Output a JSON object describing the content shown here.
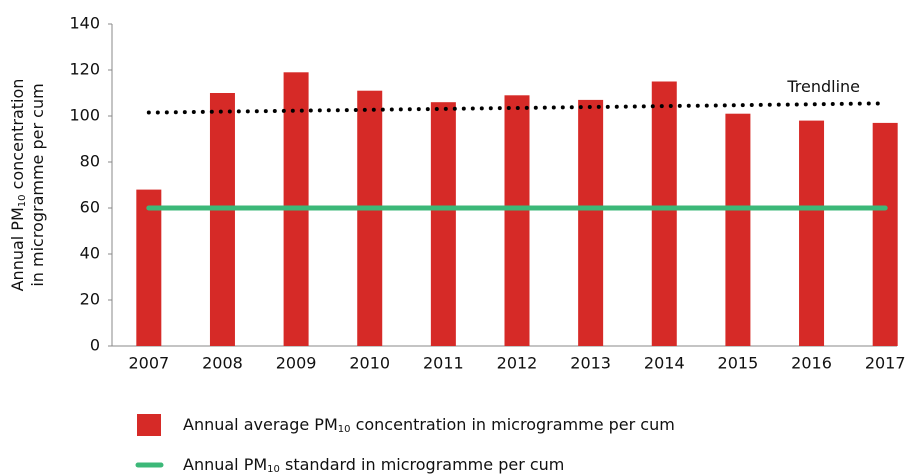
{
  "chart_data": {
    "type": "bar",
    "ylabel": [
      [
        "Annual PM",
        "10",
        " concentration"
      ],
      [
        "in microgramme per cum"
      ]
    ],
    "categories": [
      "2007",
      "2008",
      "2009",
      "2010",
      "2011",
      "2012",
      "2013",
      "2014",
      "2015",
      "2016",
      "2017"
    ],
    "series": [
      {
        "name": [
          "Annual average PM",
          "10",
          " concentration in microgramme per cum"
        ],
        "type": "bar",
        "color": "#d62a27",
        "values": [
          68,
          110,
          119,
          111,
          106,
          109,
          107,
          115,
          101,
          98,
          97
        ]
      },
      {
        "name": [
          "Annual PM",
          "10",
          " standard in microgramme per cum"
        ],
        "type": "line",
        "color": "#3cb878",
        "values": [
          60,
          60,
          60,
          60,
          60,
          60,
          60,
          60,
          60,
          60,
          60
        ]
      }
    ],
    "trendline": {
      "label": "Trendline",
      "start": 101.5,
      "end": 105.5,
      "color": "#000000"
    },
    "ylim": [
      0,
      140
    ],
    "yticks": [
      0,
      20,
      40,
      60,
      80,
      100,
      120,
      140
    ]
  }
}
